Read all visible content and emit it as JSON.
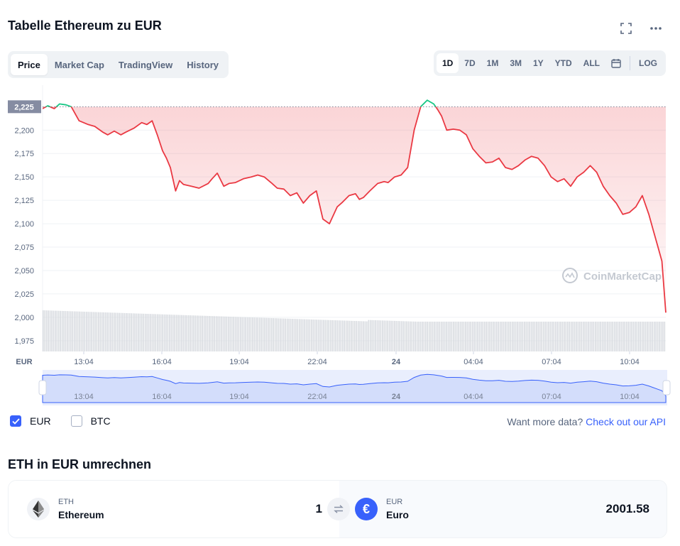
{
  "header": {
    "title": "Tabelle Ethereum zu EUR"
  },
  "icons": {
    "fullscreen": "fullscreen-icon",
    "more": "more-icon",
    "calendar": "calendar-icon",
    "swap": "swap-icon"
  },
  "tabs": [
    {
      "label": "Price",
      "active": true
    },
    {
      "label": "Market Cap",
      "active": false
    },
    {
      "label": "TradingView",
      "active": false
    },
    {
      "label": "History",
      "active": false
    }
  ],
  "ranges": [
    {
      "label": "1D",
      "active": true
    },
    {
      "label": "7D",
      "active": false
    },
    {
      "label": "1M",
      "active": false
    },
    {
      "label": "3M",
      "active": false
    },
    {
      "label": "1Y",
      "active": false
    },
    {
      "label": "YTD",
      "active": false
    },
    {
      "label": "ALL",
      "active": false
    }
  ],
  "log_label": "LOG",
  "colors": {
    "up": "#16c784",
    "down": "#ea3943",
    "accent": "#3861fb",
    "volume": "#d8dbe0"
  },
  "chart_data": {
    "type": "line",
    "currency_label": "EUR",
    "watermark": "CoinMarketCap",
    "y_ticks": [
      1975,
      2000,
      2025,
      2050,
      2075,
      2100,
      2125,
      2150,
      2175,
      2200
    ],
    "ylim": [
      1965,
      2248
    ],
    "reference_value": 2225,
    "reference_label": "2,225",
    "x_ticks": [
      "13:04",
      "16:04",
      "19:04",
      "22:04",
      "24",
      "04:04",
      "07:04",
      "10:04"
    ],
    "series": [
      {
        "x": [
          0,
          0.4,
          0.9,
          1.3,
          1.8,
          2.2,
          2.8,
          3.5,
          4,
          4.6,
          5,
          5.5,
          6,
          6.4,
          7,
          7.6,
          8,
          8.4,
          8.8,
          9.2,
          9.5,
          9.8,
          10.2,
          10.5,
          10.8,
          11.4,
          12,
          12.7,
          13,
          13.4,
          13.9,
          14.3,
          14.8,
          15.4,
          16,
          16.5,
          17,
          17.6,
          18,
          18.5,
          19,
          19.5,
          20,
          20.5,
          21,
          21.5,
          22,
          22.6,
          23,
          23.5,
          24,
          24.3,
          24.6,
          25.1,
          25.7,
          26.2,
          26.5,
          27,
          27.5,
          28,
          28.5,
          29,
          29.5,
          30,
          30.3,
          30.6,
          31,
          31.5,
          32,
          32.5,
          33,
          33.5,
          34,
          34.5,
          35,
          35.5,
          36,
          36.5,
          37,
          37.5,
          38,
          38.5,
          39,
          39.5,
          40,
          40.5,
          41,
          41.5,
          42,
          42.5,
          43,
          43.5,
          44,
          44.5,
          45,
          45.5,
          46,
          46.5,
          46.8,
          47.2,
          47.5,
          47.8
        ],
        "y": [
          2223,
          2226,
          2223,
          2228,
          2227,
          2225,
          2210,
          2206,
          2204,
          2198,
          2195,
          2199,
          2195,
          2198,
          2202,
          2208,
          2206,
          2210,
          2195,
          2178,
          2170,
          2160,
          2135,
          2146,
          2142,
          2140,
          2138,
          2143,
          2148,
          2154,
          2140,
          2143,
          2144,
          2148,
          2150,
          2152,
          2150,
          2143,
          2138,
          2137,
          2130,
          2133,
          2122,
          2130,
          2135,
          2105,
          2100,
          2118,
          2123,
          2130,
          2132,
          2126,
          2128,
          2135,
          2143,
          2145,
          2144,
          2150,
          2152,
          2160,
          2200,
          2225,
          2232,
          2228,
          2222,
          2215,
          2200,
          2201,
          2200,
          2195,
          2180,
          2172,
          2165,
          2166,
          2170,
          2160,
          2158,
          2162,
          2168,
          2172,
          2170,
          2162,
          2150,
          2145,
          2148,
          2140,
          2150,
          2155,
          2162,
          2155,
          2140,
          2130,
          2122,
          2110,
          2112,
          2118,
          2130,
          2110,
          2095,
          2075,
          2060,
          2005
        ]
      }
    ],
    "x_range": [
      0,
      47.8
    ]
  },
  "legend": {
    "eur_label": "EUR",
    "btc_label": "BTC",
    "eur_checked": true,
    "btc_checked": false
  },
  "more_data": {
    "prefix": "Want more data?",
    "link": "Check out our API"
  },
  "converter": {
    "title": "ETH in EUR umrechnen",
    "from": {
      "symbol": "ETH",
      "name": "Ethereum",
      "amount": "1"
    },
    "to": {
      "symbol": "EUR",
      "name": "Euro",
      "amount": "2001.58",
      "glyph": "€"
    }
  }
}
